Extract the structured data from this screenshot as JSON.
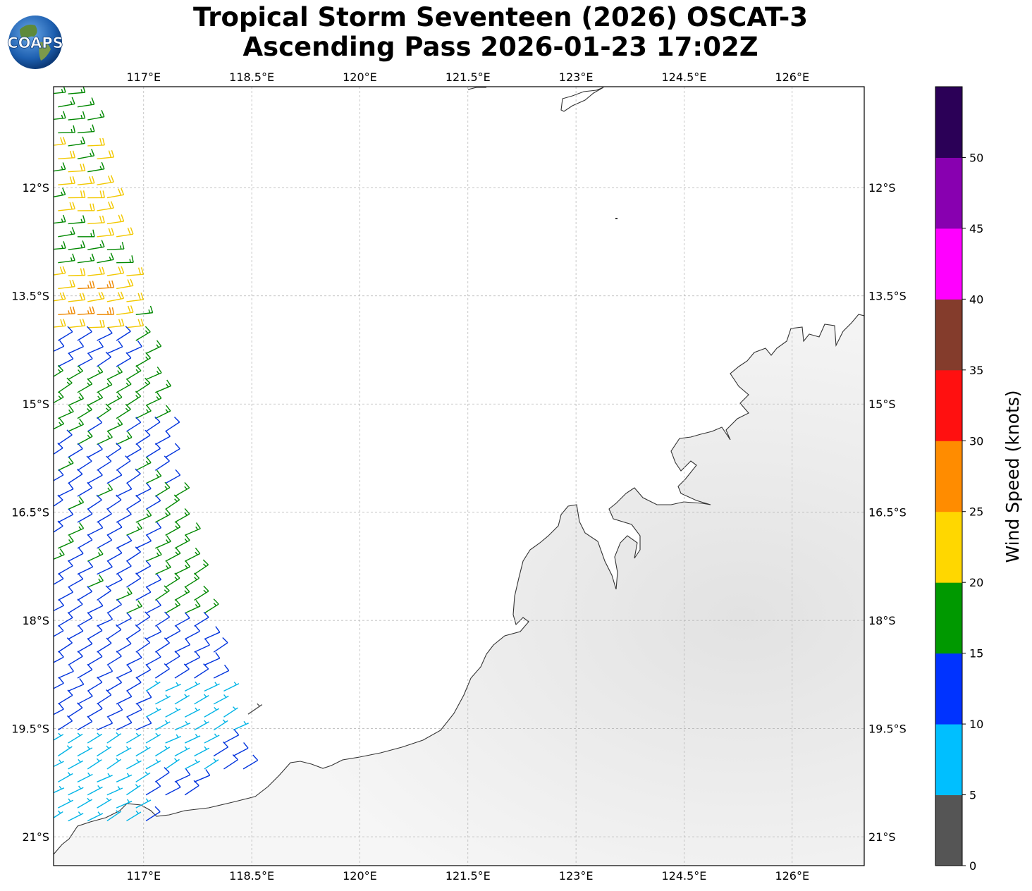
{
  "title": {
    "line1": "Tropical Storm Seventeen (2026) OSCAT-3",
    "line2": "Ascending Pass 2026-01-23 17:02Z"
  },
  "logo": {
    "text": "COAPS"
  },
  "map": {
    "lon_range": [
      115.75,
      127.0
    ],
    "lat_range": [
      -21.4,
      -10.6
    ],
    "lon_ticks": [
      "117°E",
      "118.5°E",
      "120°E",
      "121.5°E",
      "123°E",
      "124.5°E",
      "126°E"
    ],
    "lat_ticks": [
      "12°S",
      "13.5°S",
      "15°S",
      "16.5°S",
      "18°S",
      "19.5°S",
      "21°S"
    ],
    "gridlines": true,
    "land_color": "#ececec",
    "coast_color": "#333333"
  },
  "colorbar": {
    "label": "Wind Speed (knots)",
    "ticks": [
      "0",
      "5",
      "10",
      "15",
      "20",
      "25",
      "30",
      "35",
      "40",
      "45",
      "50"
    ],
    "colors": [
      "#555555",
      "#00bfff",
      "#0033ff",
      "#009900",
      "#ffd700",
      "#ff8c00",
      "#ff1010",
      "#843c2c",
      "#ff00ff",
      "#8800b0",
      "#2b0057"
    ]
  },
  "wind_barbs": {
    "color_by_knots": {
      "5": "#00b4e6",
      "10": "#0033dd",
      "15": "#008800",
      "20": "#f2c800",
      "25": "#ee8800"
    },
    "direction_deg_from": 300
  }
}
